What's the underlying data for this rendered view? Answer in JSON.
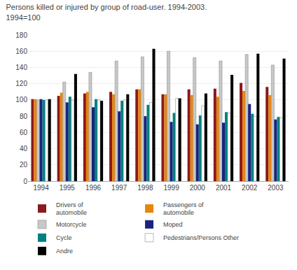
{
  "chart_data": {
    "type": "bar",
    "title": "Persons killed or injured by group of road-user. 1994-2003.\n1994=100",
    "categories": [
      "1994",
      "1995",
      "1996",
      "1997",
      "1998",
      "1999",
      "2000",
      "2001",
      "2002",
      "2003"
    ],
    "series": [
      {
        "name": "Drivers of\nautomobile",
        "color": "#8B1A1A",
        "values": [
          101,
          105,
          108,
          110,
          113,
          107,
          113,
          114,
          121,
          116
        ]
      },
      {
        "name": "Passengers of\nautomobile",
        "color": "#E8850A",
        "values": [
          101,
          109,
          110,
          107,
          113,
          107,
          106,
          104,
          111,
          106
        ]
      },
      {
        "name": "Motorcycle",
        "color": "#C8C8C8",
        "values": [
          100,
          122,
          134,
          148,
          153,
          160,
          152,
          148,
          156,
          143
        ]
      },
      {
        "name": "Moped",
        "color": "#1A237E",
        "values": [
          101,
          97,
          91,
          86,
          80,
          73,
          70,
          72,
          95,
          76
        ]
      },
      {
        "name": "Cycle",
        "color": "#008080",
        "values": [
          100,
          104,
          101,
          99,
          94,
          84,
          81,
          85,
          83,
          79
        ]
      },
      {
        "name": "Pedestrians/Persons Other",
        "color": "#FFFFFF",
        "values": [
          100,
          100,
          100,
          100,
          97,
          102,
          93,
          84,
          80,
          78
        ]
      },
      {
        "name": "Andre",
        "color": "#000000",
        "values": [
          101,
          132,
          99,
          107,
          163,
          102,
          108,
          131,
          157,
          151
        ]
      }
    ],
    "ylim": [
      0,
      180
    ],
    "yticks": [
      0,
      20,
      40,
      60,
      80,
      100,
      120,
      140,
      160,
      180
    ],
    "grid": true,
    "legend": "bottom"
  }
}
